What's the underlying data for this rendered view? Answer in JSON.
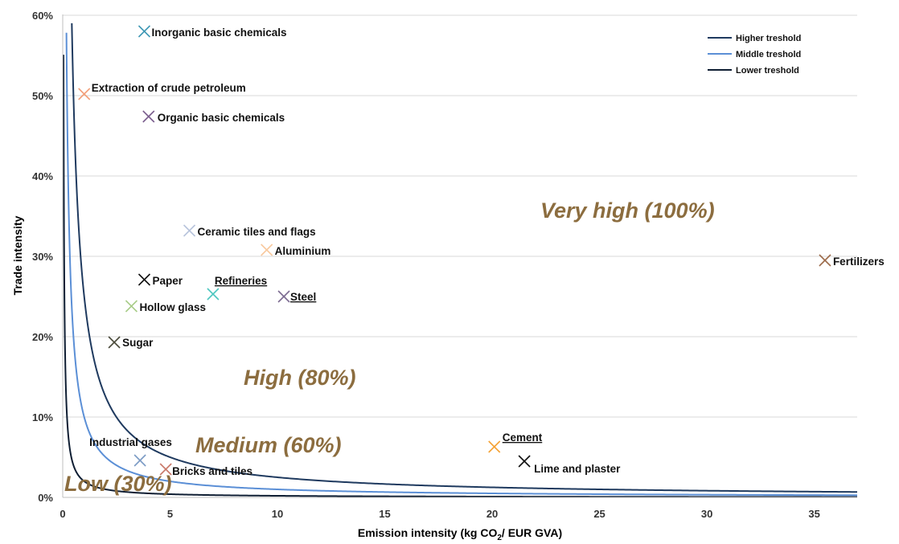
{
  "chart_data": {
    "type": "scatter",
    "xlabel_main": "Emission intensity (kg CO",
    "xlabel_sub": "2",
    "xlabel_tail": "/ EUR GVA)",
    "ylabel": "Trade intensity",
    "xlim": [
      0,
      37
    ],
    "ylim": [
      0,
      0.6
    ],
    "xticks": [
      0,
      5,
      10,
      15,
      20,
      25,
      30,
      35
    ],
    "yticks": [
      0,
      0.1,
      0.2,
      0.3,
      0.4,
      0.5,
      0.6
    ],
    "ytick_labels": [
      "0%",
      "10%",
      "20%",
      "30%",
      "40%",
      "50%",
      "60%"
    ],
    "grid": "horizontal",
    "legend_position": "top-right",
    "curves": [
      {
        "name": "Higher treshold",
        "k": 2.5,
        "color": "#1f3a5f"
      },
      {
        "name": "Middle treshold",
        "k": 1.0,
        "color": "#5b8fd6"
      },
      {
        "name": "Lower treshold",
        "k": 0.2,
        "color": "#0f1e33"
      }
    ],
    "zones": [
      "Very high (100%)",
      "High (80%)",
      "Medium (60%)",
      "Low (30%)"
    ],
    "points": [
      {
        "label": "Inorganic basic chemicals",
        "x": 3.8,
        "y": 0.58,
        "color": "#3f98b5",
        "underline": false
      },
      {
        "label": "Extraction of crude petroleum",
        "x": 1.0,
        "y": 0.502,
        "color": "#f2a07b",
        "underline": false
      },
      {
        "label": "Organic basic chemicals",
        "x": 4.0,
        "y": 0.474,
        "color": "#7b5e8e",
        "underline": false
      },
      {
        "label": "Ceramic tiles and flags",
        "x": 5.9,
        "y": 0.332,
        "color": "#b8c4dc",
        "underline": false
      },
      {
        "label": "Aluminium",
        "x": 9.5,
        "y": 0.308,
        "color": "#f8c99e",
        "underline": false
      },
      {
        "label": "Fertilizers",
        "x": 35.5,
        "y": 0.295,
        "color": "#9c6b4a",
        "underline": false
      },
      {
        "label": "Paper",
        "x": 3.8,
        "y": 0.271,
        "color": "#111111",
        "underline": false
      },
      {
        "label": "Refineries",
        "x": 7.0,
        "y": 0.253,
        "color": "#4fc7c0",
        "underline": true
      },
      {
        "label": "Steel",
        "x": 10.3,
        "y": 0.25,
        "color": "#7b6a90",
        "underline": true
      },
      {
        "label": "Hollow glass",
        "x": 3.2,
        "y": 0.238,
        "color": "#a8cc88",
        "underline": false
      },
      {
        "label": "Sugar",
        "x": 2.4,
        "y": 0.193,
        "color": "#4a4a3a",
        "underline": false
      },
      {
        "label": "Cement",
        "x": 20.1,
        "y": 0.063,
        "color": "#f5a234",
        "underline": true
      },
      {
        "label": "Lime and plaster",
        "x": 21.5,
        "y": 0.045,
        "color": "#111111",
        "underline": false
      },
      {
        "label": "Industrial gases",
        "x": 3.6,
        "y": 0.046,
        "color": "#7a9ac4",
        "underline": false
      },
      {
        "label": "Bricks and tiles",
        "x": 4.8,
        "y": 0.035,
        "color": "#c9796a",
        "underline": false
      }
    ]
  }
}
